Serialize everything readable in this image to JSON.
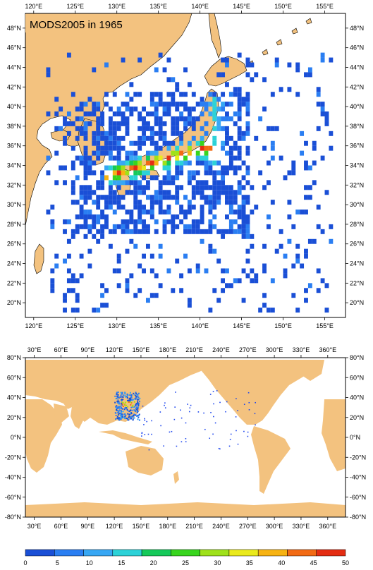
{
  "colors": {
    "land": "#f3c27f",
    "ocean": "#ffffff",
    "frame": "#000000",
    "observation_low": "#1f47ee",
    "observation_high": "#e23a18"
  },
  "top_map": {
    "title": "MODS2005 in 1965",
    "lon_range": [
      119,
      157.5
    ],
    "lat_range": [
      18.5,
      49.5
    ],
    "lon_labels": [
      "120°E",
      "125°E",
      "130°E",
      "135°E",
      "140°E",
      "145°E",
      "150°E",
      "155°E"
    ],
    "lat_labels": [
      "48°N",
      "46°N",
      "44°N",
      "42°N",
      "40°N",
      "38°N",
      "36°N",
      "34°N",
      "32°N",
      "30°N",
      "28°N",
      "26°N",
      "24°N",
      "22°N",
      "20°N"
    ]
  },
  "bottom_map": {
    "lon_range": [
      20,
      380
    ],
    "lat_range": [
      -80,
      80
    ],
    "lon_labels": [
      "30°E",
      "60°E",
      "90°E",
      "120°E",
      "150°E",
      "180°E",
      "210°E",
      "240°E",
      "270°E",
      "300°E",
      "330°E",
      "360°E"
    ],
    "lat_labels": [
      "80°N",
      "60°N",
      "40°N",
      "20°N",
      "0°N",
      "-20°N",
      "-40°N",
      "-60°N",
      "-80°N"
    ]
  },
  "colorbar": {
    "labels": [
      "0",
      "5",
      "10",
      "15",
      "20",
      "25",
      "30",
      "35",
      "40",
      "45",
      "50"
    ],
    "colors": [
      "#1a4fd6",
      "#2a7ef2",
      "#37a7f4",
      "#2cd2d8",
      "#15c95a",
      "#38d51e",
      "#9fe11a",
      "#eaea1c",
      "#f7b313",
      "#f26a14",
      "#e42d12"
    ]
  }
}
